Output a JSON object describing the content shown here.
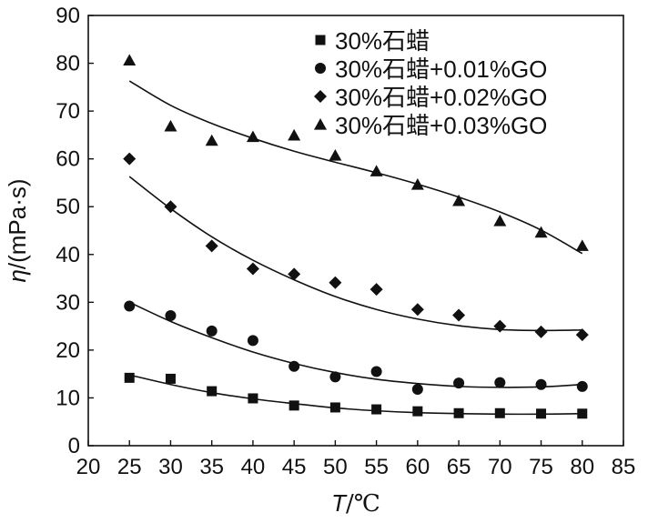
{
  "chart_data": {
    "type": "scatter",
    "title": "",
    "xlabel": "T/℃",
    "ylabel": "η/(mPa·s)",
    "xlabel_parts": {
      "var": "T",
      "unit": "/℃"
    },
    "ylabel_parts": {
      "var": "η",
      "unit": "/(mPa·s)"
    },
    "xlim": [
      20,
      85
    ],
    "ylim": [
      0,
      90
    ],
    "xticks": [
      20,
      25,
      30,
      35,
      40,
      45,
      50,
      55,
      60,
      65,
      70,
      75,
      80,
      85
    ],
    "yticks": [
      0,
      10,
      20,
      30,
      40,
      50,
      60,
      70,
      80,
      90
    ],
    "grid": false,
    "legend_position": "top-right",
    "x": [
      25,
      30,
      35,
      40,
      45,
      50,
      55,
      60,
      65,
      70,
      75,
      80
    ],
    "series": [
      {
        "name": "30%石蜡",
        "marker": "square",
        "values": [
          14.2,
          14.0,
          11.4,
          9.9,
          8.4,
          8.0,
          7.6,
          7.2,
          6.8,
          6.8,
          6.7,
          6.7
        ],
        "fit": [
          14.8,
          12.8,
          11.1,
          9.8,
          8.8,
          7.9,
          7.3,
          6.9,
          6.7,
          6.6,
          6.6,
          6.7
        ]
      },
      {
        "name": "30%石蜡+0.01%GO",
        "marker": "circle",
        "values": [
          29.2,
          27.2,
          24.0,
          22.0,
          16.6,
          14.4,
          15.5,
          11.8,
          13.1,
          13.2,
          12.8,
          12.4
        ],
        "fit": [
          30.0,
          26.0,
          22.6,
          19.6,
          17.2,
          15.3,
          13.9,
          13.0,
          12.4,
          12.2,
          12.3,
          12.8
        ]
      },
      {
        "name": "30%石蜡+0.02%GO",
        "marker": "diamond",
        "values": [
          60.0,
          50.0,
          41.8,
          37.0,
          35.9,
          34.1,
          32.7,
          28.5,
          27.3,
          25.0,
          23.8,
          23.2
        ],
        "fit": [
          56.3,
          49.6,
          43.7,
          38.8,
          34.7,
          31.2,
          28.5,
          26.5,
          25.1,
          24.3,
          24.1,
          24.2
        ]
      },
      {
        "name": "30%石蜡+0.03%GO",
        "marker": "triangle",
        "values": [
          80.6,
          66.8,
          63.8,
          64.6,
          64.9,
          60.7,
          57.4,
          54.6,
          51.2,
          47.0,
          44.6,
          41.8
        ],
        "fit": [
          76.3,
          71.2,
          67.4,
          64.3,
          61.6,
          59.3,
          57.1,
          54.7,
          52.0,
          48.9,
          45.1,
          40.2
        ]
      }
    ]
  }
}
